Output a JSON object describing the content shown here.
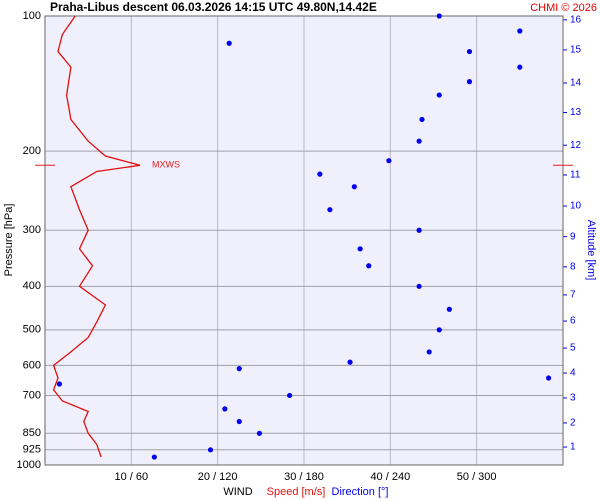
{
  "chart_data": {
    "type": "wind-profile",
    "title": "Praha-Libus   descent   06.03.2026 14:15 UTC  49.80N,14.42E",
    "credit": "CHMI © 2026",
    "xlabel": "WIND",
    "ylabel": "Pressure [hPa]",
    "y2label": "Altitude [km]",
    "log_y": true,
    "grid": true,
    "background": "#f0f0fc",
    "xlim": [
      0,
      60
    ],
    "x2lim": [
      0,
      360
    ],
    "xticks": [
      {
        "value": 10,
        "label": "10 / 60"
      },
      {
        "value": 20,
        "label": "20 / 120"
      },
      {
        "value": 30,
        "label": "30 / 180"
      },
      {
        "value": 40,
        "label": "40 / 240"
      },
      {
        "value": 50,
        "label": "50 / 300"
      }
    ],
    "ylim": [
      1000,
      100
    ],
    "yticks": [
      100,
      200,
      300,
      400,
      500,
      600,
      700,
      850,
      925,
      1000
    ],
    "altitude_ticks": [
      {
        "value": 912,
        "label": "1"
      },
      {
        "value": 806,
        "label": "2"
      },
      {
        "value": 709,
        "label": "3"
      },
      {
        "value": 624,
        "label": "4"
      },
      {
        "value": 549,
        "label": "5"
      },
      {
        "value": 478,
        "label": "6"
      },
      {
        "value": 418,
        "label": "7"
      },
      {
        "value": 362,
        "label": "8"
      },
      {
        "value": 310,
        "label": "9"
      },
      {
        "value": 265,
        "label": "10"
      },
      {
        "value": 226,
        "label": "11"
      },
      {
        "value": 194,
        "label": "12"
      },
      {
        "value": 164,
        "label": "13"
      },
      {
        "value": 141,
        "label": "14"
      },
      {
        "value": 119,
        "label": "15"
      },
      {
        "value": 102,
        "label": "16"
      }
    ],
    "annotation": {
      "text": "MXWS",
      "pressure": 215,
      "color": "#e02020"
    },
    "series": [
      {
        "name": "Speed [m/s]",
        "color": "#e01010",
        "pressure": [
          100,
          110,
          120,
          130,
          150,
          170,
          190,
          205,
          215,
          222,
          240,
          270,
          300,
          330,
          360,
          400,
          440,
          480,
          520,
          560,
          600,
          640,
          680,
          720,
          760,
          800,
          850,
          900,
          960
        ],
        "values": [
          3.5,
          2,
          1.5,
          3,
          2.5,
          3,
          5,
          7,
          11,
          6,
          3,
          4,
          5,
          4,
          5.5,
          4,
          7,
          6,
          5,
          3,
          1,
          1.5,
          1,
          2,
          5,
          4.5,
          5,
          6,
          6.5
        ]
      },
      {
        "name": "Direction [°]",
        "color": "#0000ee",
        "axis": "x2",
        "pressure": [
          100,
          108,
          115,
          120,
          130,
          140,
          150,
          170,
          190,
          210,
          225,
          240,
          270,
          300,
          330,
          360,
          400,
          450,
          500,
          560,
          590,
          610,
          640,
          660,
          700,
          750,
          800,
          850,
          925,
          960
        ],
        "values": [
          274,
          330,
          128,
          295,
          330,
          295,
          274,
          262,
          260,
          239,
          191,
          215,
          198,
          260,
          219,
          225,
          260,
          281,
          274,
          267,
          212,
          135,
          350,
          10,
          170,
          125,
          135,
          149,
          115,
          76
        ]
      }
    ]
  }
}
